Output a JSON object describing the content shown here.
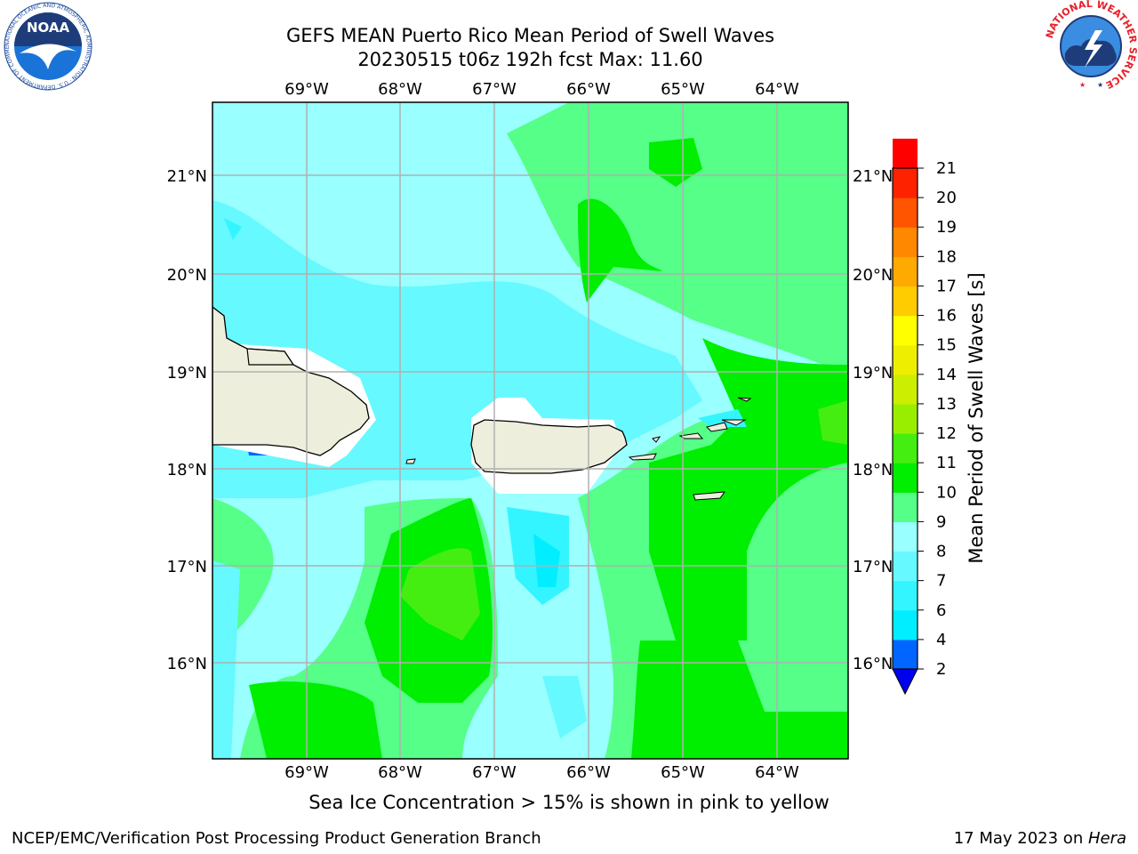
{
  "title_line1": "GEFS MEAN Puerto Rico Mean Period of Swell Waves",
  "title_line2": "20230515 t06z 192h fcst   Max: 11.60",
  "lon_labels": [
    "69°W",
    "68°W",
    "67°W",
    "66°W",
    "65°W",
    "64°W"
  ],
  "lat_labels": [
    "21°N",
    "20°N",
    "19°N",
    "18°N",
    "17°N",
    "16°N"
  ],
  "colorbar": {
    "label": "Mean Period of Swell Waves [s]",
    "ticks": [
      "2",
      "4",
      "6",
      "7",
      "8",
      "9",
      "10",
      "11",
      "12",
      "13",
      "14",
      "15",
      "16",
      "17",
      "18",
      "19",
      "20",
      "21"
    ],
    "colors": [
      "#0066ff",
      "#00eeff",
      "#33f5ff",
      "#66f9ff",
      "#99ffff",
      "#55ff88",
      "#00ee00",
      "#44ee11",
      "#99ee00",
      "#ccee00",
      "#eeee00",
      "#ffff00",
      "#ffcc00",
      "#ffaa00",
      "#ff8800",
      "#ff5500",
      "#ff2200",
      "#ff0000"
    ],
    "under_color": "#0000ee"
  },
  "caption": "Sea Ice Concentration > 15% is shown in pink to yellow",
  "credit": "NCEP/EMC/Verification Post Processing Product Generation Branch",
  "stamp_prefix": "17 May 2023 on ",
  "stamp_host": "Hera",
  "colors": {
    "land": "#eeeedc",
    "grid": "#b0b0b0",
    "noaa_blue": "#1f4e9c",
    "nws_red": "#e8202a"
  },
  "noaa_logo": {
    "text": "NOAA",
    "ring_text": "NATIONAL OCEANIC AND ATMOSPHERIC ADMINISTRATION · U.S. DEPARTMENT OF COMMERCE"
  },
  "nws_logo": {
    "ring_text": "NATIONAL WEATHER SERVICE"
  }
}
